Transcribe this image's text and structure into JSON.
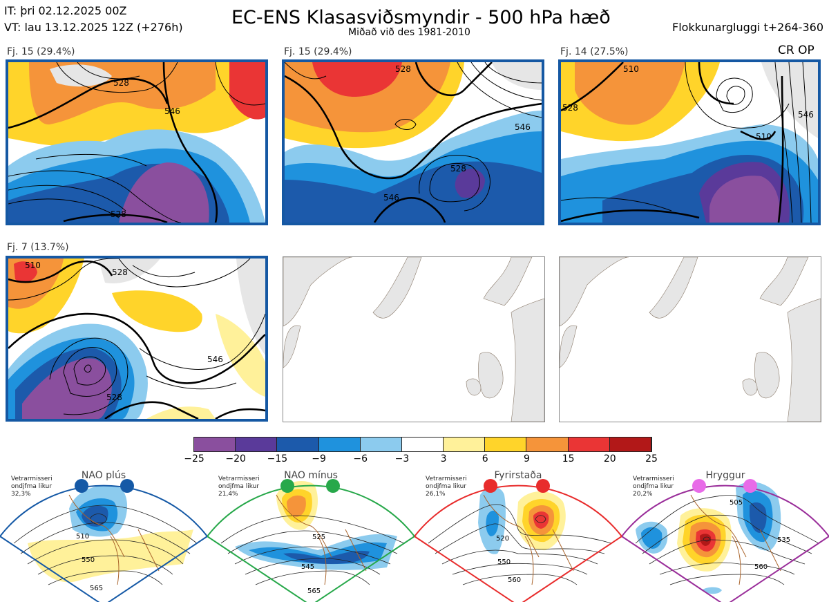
{
  "header": {
    "it": "IT: þri 02.12.2025 00Z",
    "vt": "VT: lau 13.12.2025 12Z  (+276h)",
    "title": "EC-ENS Klasasviðsmyndir - 500 hPa hæð",
    "subtitle": "Miðað við des 1981-2010",
    "window": "Flokkunargluggi t+264-360",
    "cr": "CR OP"
  },
  "panels": [
    {
      "label": "Fj. 15 (29.4%)",
      "contours": [
        "528",
        "546",
        "528"
      ]
    },
    {
      "label": "Fj. 15 (29.4%)",
      "contours": [
        "528",
        "546",
        "528",
        "546"
      ]
    },
    {
      "label": "Fj. 14 (27.5%)",
      "contours": [
        "510",
        "528",
        "510",
        "546"
      ]
    },
    {
      "label": "Fj. 7 (13.7%)",
      "contours": [
        "510",
        "528",
        "528",
        "546"
      ]
    },
    {
      "label": ""
    },
    {
      "label": ""
    }
  ],
  "colorbar": {
    "colors": [
      "#8a4f9e",
      "#5a3a9a",
      "#1c5aab",
      "#1f92dd",
      "#8ccbee",
      "#ffffff",
      "#fff19a",
      "#ffd42a",
      "#f5943a",
      "#ea3535",
      "#b21818"
    ],
    "ticks": [
      "−25",
      "−20",
      "−15",
      "−9",
      "−6",
      "−3",
      "3",
      "6",
      "9",
      "15",
      "20",
      "25"
    ]
  },
  "regimes": [
    {
      "name": "NAO plús",
      "note": "Vetrarmisseri ondjfma likur 32,3%",
      "color": "#1559a6",
      "labels": [
        "510",
        "550",
        "565"
      ]
    },
    {
      "name": "NAO mínus",
      "note": "Vetrarmisseri ondjfma likur 21,4%",
      "color": "#27a84a",
      "labels": [
        "525",
        "545",
        "565"
      ]
    },
    {
      "name": "Fyrirstaða",
      "note": "Vetrarmisseri ondjfma likur 26,1%",
      "color": "#e82c2c",
      "labels": [
        "520",
        "550",
        "560"
      ]
    },
    {
      "name": "Hryggur",
      "note": "Vetrarmisseri ondjfma likur 20,2%",
      "color": "#e86be8",
      "labels": [
        "505",
        "535",
        "560"
      ]
    }
  ]
}
